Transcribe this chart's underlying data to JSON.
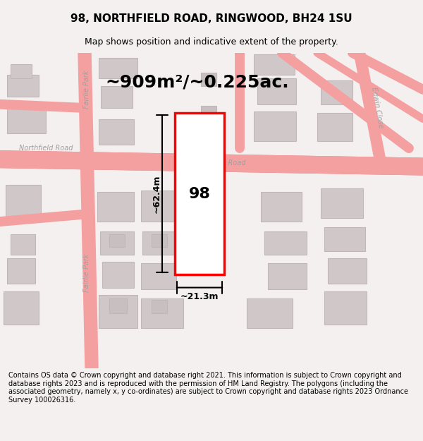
{
  "title": "98, NORTHFIELD ROAD, RINGWOOD, BH24 1SU",
  "subtitle": "Map shows position and indicative extent of the property.",
  "area_text": "~909m²/~0.225ac.",
  "width_text": "~21.3m",
  "height_text": "~62.4m",
  "number_text": "98",
  "footer_text": "Contains OS data © Crown copyright and database right 2021. This information is subject to Crown copyright and database rights 2023 and is reproduced with the permission of HM Land Registry. The polygons (including the associated geometry, namely x, y co-ordinates) are subject to Crown copyright and database rights 2023 Ordnance Survey 100026316.",
  "bg_color": "#f5f0f0",
  "map_bg_color": "#ffffff",
  "road_color": "#f5a0a0",
  "building_color": "#d0c8c8",
  "building_edge_color": "#c0b8b8",
  "road_label_color": "#a0a0a0",
  "plot_color": "#ff0000",
  "plot_fill": "#ffffff",
  "dim_color": "#000000",
  "title_color": "#000000",
  "footer_color": "#000000",
  "area_color": "#000000"
}
